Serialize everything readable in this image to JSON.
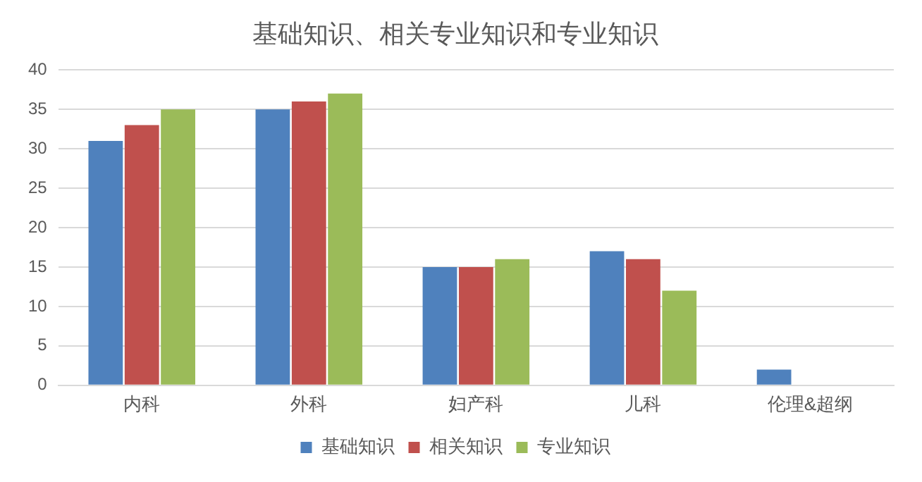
{
  "chart_data": {
    "type": "bar",
    "title": "基础知识、相关专业知识和专业知识",
    "categories": [
      "内科",
      "外科",
      "妇产科",
      "儿科",
      "伦理&超纲"
    ],
    "series": [
      {
        "name": "基础知识",
        "color": "#4f81bd",
        "values": [
          31,
          35,
          15,
          17,
          2
        ]
      },
      {
        "name": "相关知识",
        "color": "#c0504d",
        "values": [
          33,
          36,
          15,
          16,
          null
        ]
      },
      {
        "name": "专业知识",
        "color": "#9bbb59",
        "values": [
          35,
          37,
          16,
          12,
          null
        ]
      }
    ],
    "ylim": [
      0,
      40
    ],
    "yticks": [
      0,
      5,
      10,
      15,
      20,
      25,
      30,
      35,
      40
    ],
    "grid": "y",
    "legend": "bottom"
  }
}
